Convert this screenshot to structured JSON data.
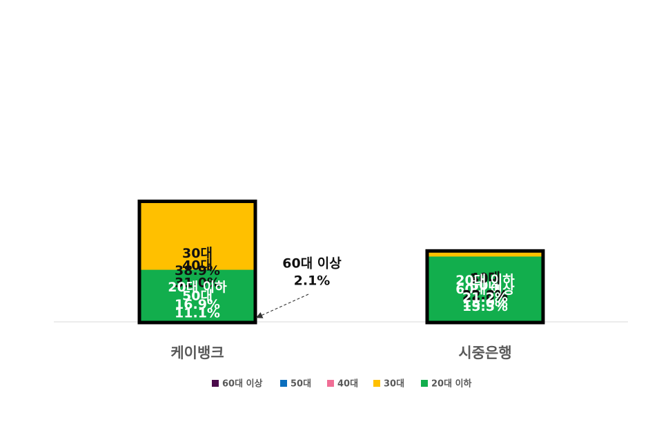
{
  "chart_data": {
    "type": "bar",
    "stacked": true,
    "unit": "%",
    "categories": [
      "케이뱅크",
      "시중은행"
    ],
    "series": [
      {
        "name": "60대 이상",
        "color": "#4B0A4B",
        "label_color": "#ffffff",
        "values": [
          2.1,
          15.5
        ]
      },
      {
        "name": "50대",
        "color": "#0B6EBD",
        "label_color": "#ffffff",
        "values": [
          11.1,
          18.0
        ]
      },
      {
        "name": "40대",
        "color": "#F06E96",
        "label_color": "#111111",
        "values": [
          31.0,
          22.8
        ]
      },
      {
        "name": "30대",
        "color": "#FFC000",
        "label_color": "#111111",
        "values": [
          38.9,
          22.5
        ]
      },
      {
        "name": "20대 이하",
        "color": "#12AE4D",
        "label_color": "#ffffff",
        "values": [
          16.9,
          21.2
        ]
      }
    ],
    "value_labels": [
      [
        "",
        "15.5%"
      ],
      [
        "11.1%",
        "18.0%"
      ],
      [
        "31.0%",
        "22.8%"
      ],
      [
        "38.9%",
        "22.5%"
      ],
      [
        "16.9%",
        "21.2%"
      ]
    ],
    "highlighted_series": [
      "40대",
      "30대"
    ],
    "annotation": {
      "category": "케이뱅크",
      "series": "60대 이상",
      "title": "60대 이상",
      "value": "2.1%"
    },
    "legend_position": "bottom",
    "grid": false
  }
}
